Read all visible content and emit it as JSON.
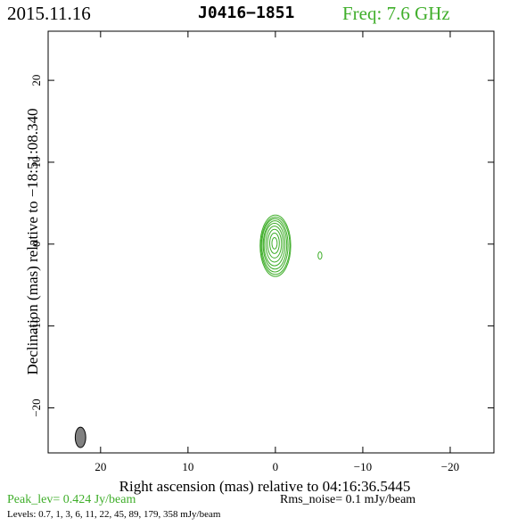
{
  "header": {
    "date": "2015.11.16",
    "source": "J0416−1851",
    "freq": "Freq: 7.6 GHz"
  },
  "footer": {
    "peak": "Peak_lev=  0.424 Jy/beam",
    "rms": "Rms_noise=  0.1 mJy/beam",
    "levels": "Levels: 0.7,   1,   3,   6,  11,  22,  45,  89, 179, 358 mJy/beam"
  },
  "colors": {
    "contour": "#3fae2a",
    "beam": "#808080",
    "frame": "#000000"
  },
  "chart_data": {
    "type": "contour",
    "xlabel": "Right ascension (mas) relative to 04:16:36.5445",
    "ylabel": "Declination (mas) relative to −18:51:08.340",
    "xlim": [
      26,
      -25
    ],
    "ylim": [
      -25.5,
      26
    ],
    "x_ticks": [
      20,
      10,
      0,
      -10,
      -20
    ],
    "y_ticks": [
      20,
      10,
      0,
      -10,
      -20
    ],
    "x_tick_labels": [
      "20",
      "10",
      "0",
      "−10",
      "−20"
    ],
    "y_tick_labels": [
      "20",
      "10",
      "0",
      "−10",
      "−20"
    ],
    "contour_levels_mJy": [
      0.7,
      1,
      3,
      6,
      11,
      22,
      45,
      89,
      179,
      358
    ],
    "components": [
      {
        "x": 0.1,
        "y": 0.1,
        "ellipses": [
          {
            "dx": -0.1,
            "dy": -0.3,
            "a": 1.75,
            "b": 3.75
          },
          {
            "dx": -0.1,
            "dy": -0.3,
            "a": 1.65,
            "b": 3.5
          },
          {
            "dx": -0.05,
            "dy": -0.25,
            "a": 1.5,
            "b": 3.25
          },
          {
            "dx": -0.05,
            "dy": -0.2,
            "a": 1.35,
            "b": 2.95
          },
          {
            "dx": 0.0,
            "dy": -0.15,
            "a": 1.2,
            "b": 2.6
          },
          {
            "dx": 0.0,
            "dy": -0.1,
            "a": 1.0,
            "b": 2.2
          },
          {
            "dx": 0.0,
            "dy": -0.05,
            "a": 0.8,
            "b": 1.75
          },
          {
            "dx": 0.0,
            "dy": 0.0,
            "a": 0.55,
            "b": 1.25
          },
          {
            "dx": 0.0,
            "dy": 0.0,
            "a": 0.3,
            "b": 0.7
          }
        ]
      },
      {
        "x": -5.1,
        "y": -1.4,
        "ellipses": [
          {
            "dx": 0,
            "dy": 0,
            "a": 0.22,
            "b": 0.45
          }
        ]
      }
    ],
    "beam": {
      "x": 22.3,
      "y": -23.6,
      "a": 0.6,
      "b": 1.25
    }
  }
}
